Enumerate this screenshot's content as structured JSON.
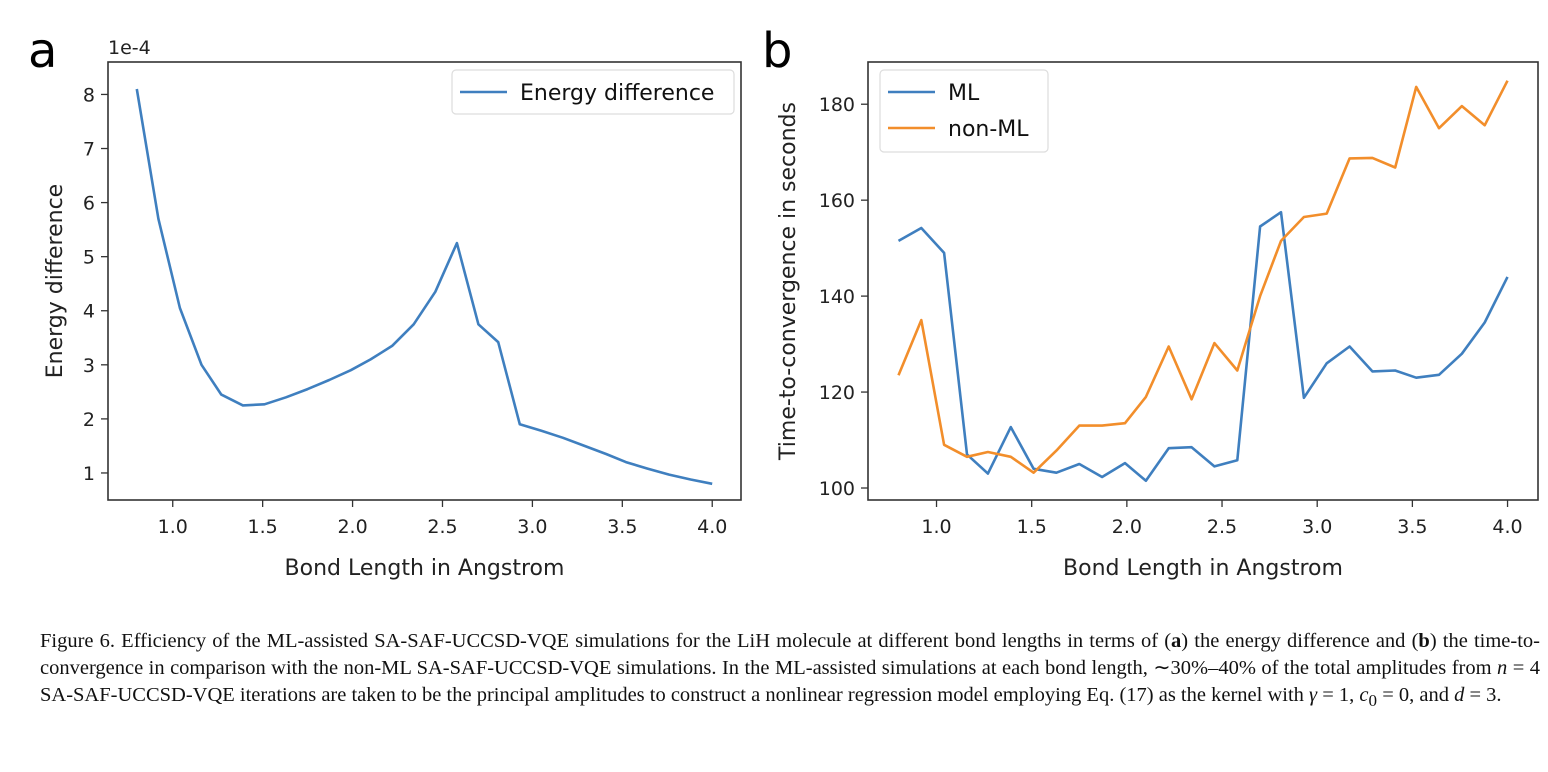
{
  "chart_data": [
    {
      "type": "line",
      "panel_label": "a",
      "offset_text": "1e-4",
      "xlabel": "Bond Length in Angstrom",
      "ylabel": "Energy difference",
      "xlim": [
        0.64,
        4.16
      ],
      "ylim": [
        0.5,
        8.6
      ],
      "xticks": [
        "1.0",
        "1.5",
        "2.0",
        "2.5",
        "3.0",
        "3.5",
        "4.0"
      ],
      "yticks": [
        "1",
        "2",
        "3",
        "4",
        "5",
        "6",
        "7",
        "8"
      ],
      "grid": false,
      "legend_position": "top-right",
      "x": [
        0.8,
        0.92,
        1.04,
        1.16,
        1.27,
        1.39,
        1.51,
        1.63,
        1.75,
        1.87,
        1.99,
        2.1,
        2.22,
        2.34,
        2.46,
        2.58,
        2.7,
        2.81,
        2.93,
        3.05,
        3.17,
        3.29,
        3.41,
        3.52,
        3.64,
        3.76,
        3.88,
        4.0
      ],
      "series": [
        {
          "name": "Energy difference",
          "color": "#3f7fbf",
          "values": [
            8.1,
            5.7,
            4.05,
            3.0,
            2.45,
            2.25,
            2.27,
            2.4,
            2.55,
            2.72,
            2.9,
            3.1,
            3.35,
            3.75,
            4.35,
            5.25,
            3.75,
            3.42,
            1.9,
            1.78,
            1.65,
            1.5,
            1.35,
            1.2,
            1.08,
            0.97,
            0.88,
            0.8
          ]
        }
      ]
    },
    {
      "type": "line",
      "panel_label": "b",
      "xlabel": "Bond Length in Angstrom",
      "ylabel": "Time-to-convergence in seconds",
      "xlim": [
        0.64,
        4.16
      ],
      "ylim": [
        97.5,
        188.8
      ],
      "xticks": [
        "1.0",
        "1.5",
        "2.0",
        "2.5",
        "3.0",
        "3.5",
        "4.0"
      ],
      "yticks": [
        "100",
        "120",
        "140",
        "160",
        "180"
      ],
      "grid": false,
      "legend_position": "top-left",
      "x": [
        0.8,
        0.92,
        1.04,
        1.16,
        1.27,
        1.39,
        1.51,
        1.63,
        1.75,
        1.87,
        1.99,
        2.1,
        2.22,
        2.34,
        2.46,
        2.58,
        2.7,
        2.81,
        2.93,
        3.05,
        3.17,
        3.29,
        3.41,
        3.52,
        3.64,
        3.76,
        3.88,
        4.0
      ],
      "series": [
        {
          "name": "ML",
          "color": "#3f7fbf",
          "values": [
            151.5,
            154.2,
            149,
            107,
            103,
            112.7,
            104,
            103.2,
            105,
            102.3,
            105.2,
            101.5,
            108.3,
            108.5,
            104.5,
            105.8,
            154.5,
            157.5,
            118.8,
            126,
            129.5,
            124.3,
            124.5,
            123,
            123.6,
            128,
            134.5,
            144
          ]
        },
        {
          "name": "non-ML",
          "color": "#f28e2b",
          "values": [
            123.5,
            135,
            109,
            106.5,
            107.5,
            106.5,
            103.2,
            107.8,
            113,
            113,
            113.5,
            119,
            129.5,
            118.5,
            130.2,
            124.5,
            140,
            151.5,
            156.5,
            157.2,
            168.7,
            168.8,
            166.8,
            183.6,
            175,
            179.6,
            175.6,
            184.9
          ]
        }
      ]
    }
  ],
  "caption": {
    "t1": "Figure 6. Efficiency of the ML-assisted SA-SAF-UCCSD-VQE simulations for the LiH molecule at different bond lengths in terms of (",
    "a": "a",
    "t2": ") the energy difference and (",
    "b": "b",
    "t3": ") the time-to-convergence in comparison with the non-ML SA-SAF-UCCSD-VQE simulations. In the ML-assisted simulations at each bond length, ∼30%–40% of the total amplitudes from ",
    "n": "n",
    "t4": " = 4 SA-SAF-UCCSD-VQE iterations are taken to be the principal amplitudes to construct a nonlinear regression model employing Eq. (17) as the kernel with ",
    "gamma": "γ",
    "t5": " = 1, ",
    "c0": "c",
    "c0sub": "0",
    "t6": " = 0, and ",
    "d": "d",
    "t7": " = 3."
  }
}
